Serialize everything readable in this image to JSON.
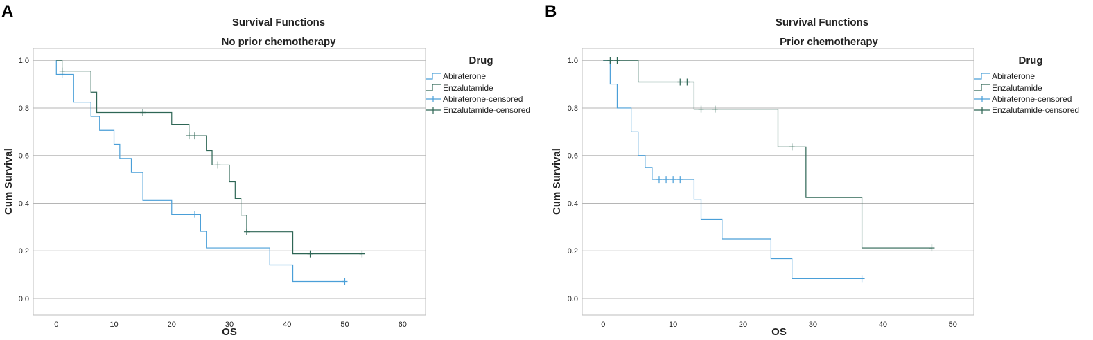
{
  "colors": {
    "abiraterone": "#4a9fd8",
    "enzalutamide": "#2e6655",
    "grid": "#b5b5b5",
    "frame": "#bdbdbd"
  },
  "chart_data": [
    {
      "panel_label": "A",
      "type": "line",
      "subtype": "kaplan-meier",
      "title": "Survival Functions",
      "subtitle": "No prior chemotherapy",
      "xlabel": "OS",
      "ylabel": "Cum Survival",
      "xlim": [
        -4,
        64
      ],
      "ylim": [
        -0.07,
        1.05
      ],
      "xticks": [
        0,
        10,
        20,
        30,
        40,
        50,
        60
      ],
      "xtick_labels": [
        "0",
        "10",
        "20",
        "30",
        "40",
        "50",
        "60"
      ],
      "yticks": [
        0.0,
        0.2,
        0.4,
        0.6,
        0.8,
        1.0
      ],
      "ytick_labels": [
        "0.0",
        "0.2",
        "0.4",
        "0.6",
        "0.8",
        "1.0"
      ],
      "grid": "horizontal",
      "legend": {
        "title": "Drug",
        "position": "right",
        "items": [
          "Abiraterone",
          "Enzalutamide",
          "Abiraterone-censored",
          "Enzalutamide-censored"
        ]
      },
      "series": [
        {
          "name": "Abiraterone",
          "color_key": "abiraterone",
          "steps": [
            [
              0,
              0.941
            ],
            [
              3,
              0.824
            ],
            [
              6,
              0.765
            ],
            [
              7.5,
              0.706
            ],
            [
              10,
              0.647
            ],
            [
              11,
              0.588
            ],
            [
              13,
              0.529
            ],
            [
              15,
              0.412
            ],
            [
              20,
              0.353
            ],
            [
              25,
              0.282
            ],
            [
              26,
              0.212
            ],
            [
              37,
              0.141
            ],
            [
              41,
              0.071
            ],
            [
              50,
              0.071
            ]
          ],
          "censored": [
            [
              1,
              0.941
            ],
            [
              24,
              0.353
            ],
            [
              50,
              0.071
            ]
          ]
        },
        {
          "name": "Enzalutamide",
          "color_key": "enzalutamide",
          "steps": [
            [
              0,
              1.0
            ],
            [
              1,
              0.955
            ],
            [
              6,
              0.866
            ],
            [
              7,
              0.781
            ],
            [
              20,
              0.731
            ],
            [
              23,
              0.683
            ],
            [
              26,
              0.621
            ],
            [
              27,
              0.56
            ],
            [
              30,
              0.49
            ],
            [
              31,
              0.42
            ],
            [
              32,
              0.35
            ],
            [
              33,
              0.28
            ],
            [
              41,
              0.187
            ],
            [
              53,
              0.187
            ]
          ],
          "censored": [
            [
              1,
              0.955
            ],
            [
              15,
              0.781
            ],
            [
              23,
              0.683
            ],
            [
              24,
              0.683
            ],
            [
              28,
              0.56
            ],
            [
              33,
              0.28
            ],
            [
              44,
              0.187
            ],
            [
              53,
              0.187
            ]
          ]
        }
      ]
    },
    {
      "panel_label": "B",
      "type": "line",
      "subtype": "kaplan-meier",
      "title": "Survival Functions",
      "subtitle": "Prior chemotherapy",
      "xlabel": "OS",
      "ylabel": "Cum Survival",
      "xlim": [
        -3,
        53
      ],
      "ylim": [
        -0.07,
        1.05
      ],
      "xticks": [
        0,
        10,
        20,
        30,
        40,
        50
      ],
      "xtick_labels": [
        "0",
        "10",
        "20",
        "30",
        "40",
        "50"
      ],
      "yticks": [
        0.0,
        0.2,
        0.4,
        0.6,
        0.8,
        1.0
      ],
      "ytick_labels": [
        "0.0",
        "0.2",
        "0.4",
        "0.6",
        "0.8",
        "1.0"
      ],
      "grid": "horizontal",
      "legend": {
        "title": "Drug",
        "position": "right",
        "items": [
          "Abiraterone",
          "Enzalutamide",
          "Abiraterone-censored",
          "Enzalutamide-censored"
        ]
      },
      "series": [
        {
          "name": "Abiraterone",
          "color_key": "abiraterone",
          "steps": [
            [
              0,
              1.0
            ],
            [
              1,
              0.9
            ],
            [
              2,
              0.8
            ],
            [
              4,
              0.7
            ],
            [
              5,
              0.6
            ],
            [
              6,
              0.55
            ],
            [
              7,
              0.5
            ],
            [
              13,
              0.417
            ],
            [
              14,
              0.333
            ],
            [
              17,
              0.25
            ],
            [
              24,
              0.167
            ],
            [
              27,
              0.083
            ],
            [
              37,
              0.083
            ]
          ],
          "censored": [
            [
              8,
              0.5
            ],
            [
              9,
              0.5
            ],
            [
              10,
              0.5
            ],
            [
              11,
              0.5
            ],
            [
              37,
              0.083
            ]
          ]
        },
        {
          "name": "Enzalutamide",
          "color_key": "enzalutamide",
          "steps": [
            [
              0,
              1.0
            ],
            [
              5,
              0.909
            ],
            [
              13,
              0.795
            ],
            [
              25,
              0.636
            ],
            [
              29,
              0.424
            ],
            [
              37,
              0.212
            ],
            [
              47,
              0.212
            ]
          ],
          "censored": [
            [
              1,
              1.0
            ],
            [
              2,
              1.0
            ],
            [
              11,
              0.909
            ],
            [
              12,
              0.909
            ],
            [
              14,
              0.795
            ],
            [
              16,
              0.795
            ],
            [
              27,
              0.636
            ],
            [
              47,
              0.212
            ]
          ]
        }
      ]
    }
  ]
}
